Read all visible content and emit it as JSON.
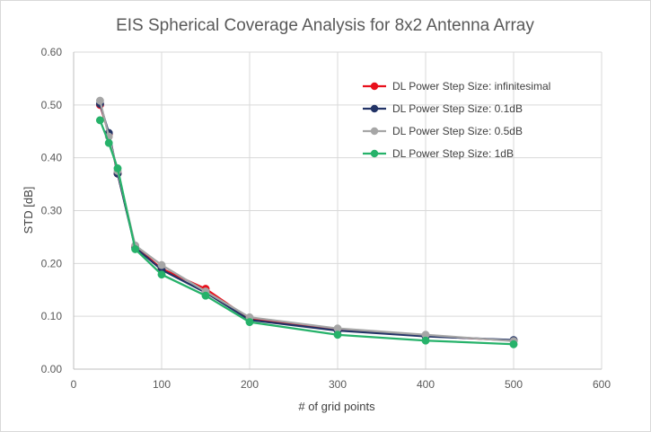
{
  "chart_data": {
    "type": "line",
    "title": "EIS Spherical Coverage Analysis for 8x2 Antenna Array",
    "xlabel": "# of grid points",
    "ylabel": "STD [dB]",
    "xlim": [
      0,
      600
    ],
    "ylim": [
      0,
      0.6
    ],
    "xticks": [
      0,
      100,
      200,
      300,
      400,
      500,
      600
    ],
    "yticks": [
      0,
      0.1,
      0.2,
      0.3,
      0.4,
      0.5,
      0.6
    ],
    "xtick_labels": [
      "0",
      "100",
      "200",
      "300",
      "400",
      "500",
      "600"
    ],
    "ytick_labels": [
      "0.00",
      "0.10",
      "0.20",
      "0.30",
      "0.40",
      "0.50",
      "0.60"
    ],
    "grid": "vertical and horizontal major gridlines",
    "legend_position": "top-right",
    "x": [
      30,
      40,
      50,
      70,
      100,
      150,
      200,
      300,
      400,
      500
    ],
    "series": [
      {
        "name": "DL Power Step Size: infinitesimal",
        "color": "#e8101c",
        "values": [
          0.5,
          0.445,
          0.37,
          0.232,
          0.19,
          0.152,
          0.095,
          0.075,
          0.063,
          0.054
        ]
      },
      {
        "name": "DL Power Step Size: 0.1dB",
        "color": "#223366",
        "values": [
          0.502,
          0.447,
          0.37,
          0.23,
          0.188,
          0.145,
          0.093,
          0.073,
          0.062,
          0.055
        ]
      },
      {
        "name": "DL Power Step Size: 0.5dB",
        "color": "#a6a6a6",
        "values": [
          0.508,
          0.44,
          0.375,
          0.234,
          0.197,
          0.147,
          0.098,
          0.077,
          0.065,
          0.053
        ]
      },
      {
        "name": "DL Power Step Size: 1dB",
        "color": "#26b26a",
        "values": [
          0.471,
          0.428,
          0.38,
          0.227,
          0.179,
          0.139,
          0.089,
          0.065,
          0.054,
          0.047
        ]
      }
    ]
  }
}
